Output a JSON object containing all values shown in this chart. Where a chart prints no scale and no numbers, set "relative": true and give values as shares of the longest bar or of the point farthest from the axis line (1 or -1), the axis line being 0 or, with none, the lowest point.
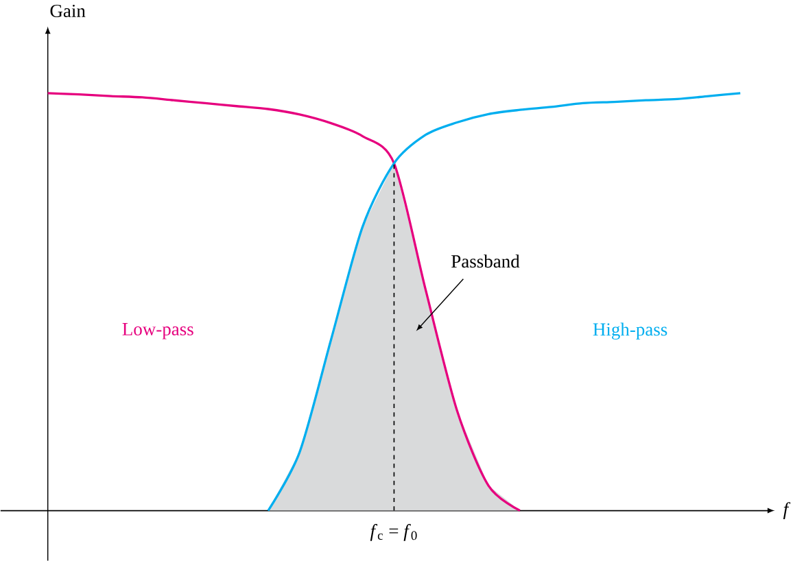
{
  "chart_data": {
    "type": "line",
    "relative": true,
    "xlabel": "f",
    "ylabel": "Gain",
    "categories": [
      null,
      null,
      null,
      null,
      null,
      null,
      null,
      null,
      null,
      null,
      null,
      null,
      null,
      null,
      null,
      null,
      null,
      null,
      null,
      null,
      null,
      null,
      null
    ],
    "series": [
      {
        "name": "Low-pass",
        "color": "#e6007e",
        "values": [
          1.0,
          0.997,
          0.993,
          0.99,
          0.983,
          0.976,
          0.969,
          0.962,
          0.949,
          0.928,
          0.897,
          0.832,
          0.53,
          0.24,
          0.06,
          0,
          null,
          null,
          null,
          null,
          null,
          null,
          null
        ]
      },
      {
        "name": "High-pass",
        "color": "#00aeef",
        "values": [
          null,
          null,
          null,
          null,
          null,
          null,
          null,
          0,
          0.14,
          0.41,
          0.68,
          0.832,
          0.9,
          0.93,
          0.95,
          0.96,
          0.967,
          0.976,
          0.979,
          0.983,
          0.986,
          0.993,
          1.0
        ]
      },
      {
        "type": "area",
        "color": "#d9dadb",
        "values": [
          null,
          null,
          null,
          null,
          null,
          null,
          null,
          0,
          0.14,
          0.41,
          0.68,
          0.832,
          0.53,
          0.24,
          0.06,
          0,
          null,
          null,
          null,
          null,
          null,
          null,
          null
        ]
      }
    ],
    "annotations": [
      "Passband",
      "*f*$_{c}$ = *f*$_{0}$"
    ]
  }
}
